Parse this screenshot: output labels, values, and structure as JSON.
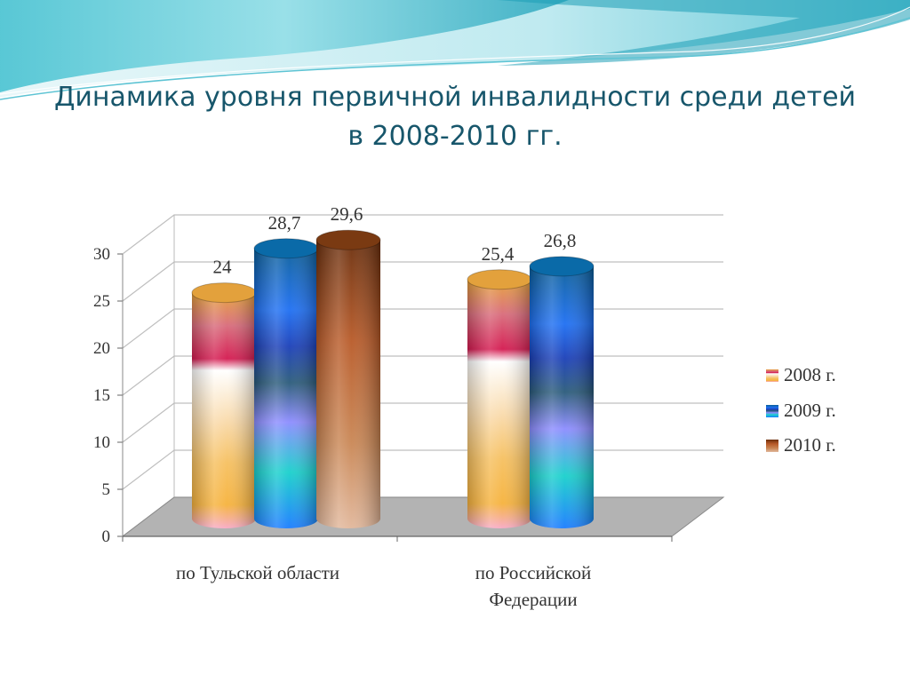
{
  "title": {
    "line1": "Динамика уровня первичной инвалидности среди детей",
    "line2": "в 2008-2010 гг."
  },
  "chart_data": {
    "type": "bar",
    "style": "3d-cylinder",
    "title": "Динамика уровня первичной инвалидности среди детей в 2008-2010 гг.",
    "categories": [
      "по Тульской области",
      "по Российской Федерации"
    ],
    "series": [
      {
        "name": "2008 г.",
        "values": [
          24,
          25.4
        ],
        "labels": [
          "24",
          "25,4"
        ]
      },
      {
        "name": "2009 г.",
        "values": [
          28.7,
          26.8
        ],
        "labels": [
          "28,7",
          "26,8"
        ]
      },
      {
        "name": "2010 г.",
        "values": [
          29.6,
          null
        ],
        "labels": [
          "29,6",
          ""
        ]
      }
    ],
    "ylim": [
      0,
      30
    ],
    "yticks": [
      "0",
      "5",
      "10",
      "15",
      "20",
      "25",
      "30"
    ],
    "legend_position": "right",
    "grid": true
  },
  "colors": {
    "title": "#17566b",
    "s2008_top": "#e3a13c",
    "s2009_top": "#0a6aa8",
    "s2010_top": "#7a3a12",
    "grid": "#bfbfbf",
    "floor": "#b3b3b3"
  }
}
